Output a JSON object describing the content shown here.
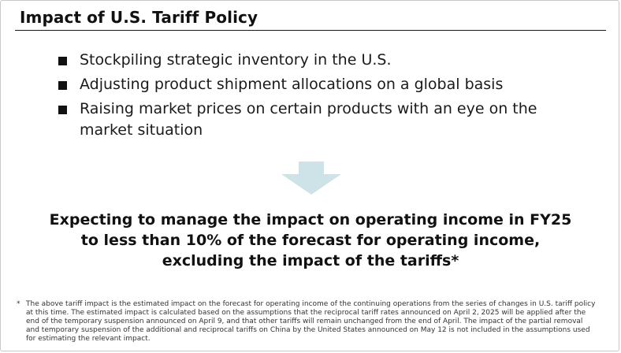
{
  "slide": {
    "title": "Impact of U.S. Tariff Policy",
    "bullets": [
      {
        "text": "Stockpiling strategic inventory in the U.S."
      },
      {
        "text": "Adjusting product shipment allocations on a global basis"
      },
      {
        "text": "Raising market prices on certain products with an eye on the market situation"
      }
    ],
    "arrow_icon": "down-arrow-icon",
    "arrow_color": "#cde3e7",
    "conclusion": [
      "Expecting to manage the impact on operating income in FY25",
      "to less than 10% of the forecast for operating income,",
      "excluding the impact of the tariffs*"
    ],
    "footnote_mark": "*",
    "footnote": "The above tariff impact is the estimated impact on the forecast for operating income of the continuing operations from the series of changes in U.S. tariff policy at this time. The estimated impact is calculated based on the assumptions that the reciprocal tariff rates announced on April 2, 2025 will be applied after the end of the temporary suspension announced on April 9, and that other tariffs will remain unchanged from the end of April. The impact of the partial removal and temporary suspension of the additional and reciprocal tariffs on China by the United States announced on May 12 is not included in the assumptions used for estimating the relevant impact."
  }
}
